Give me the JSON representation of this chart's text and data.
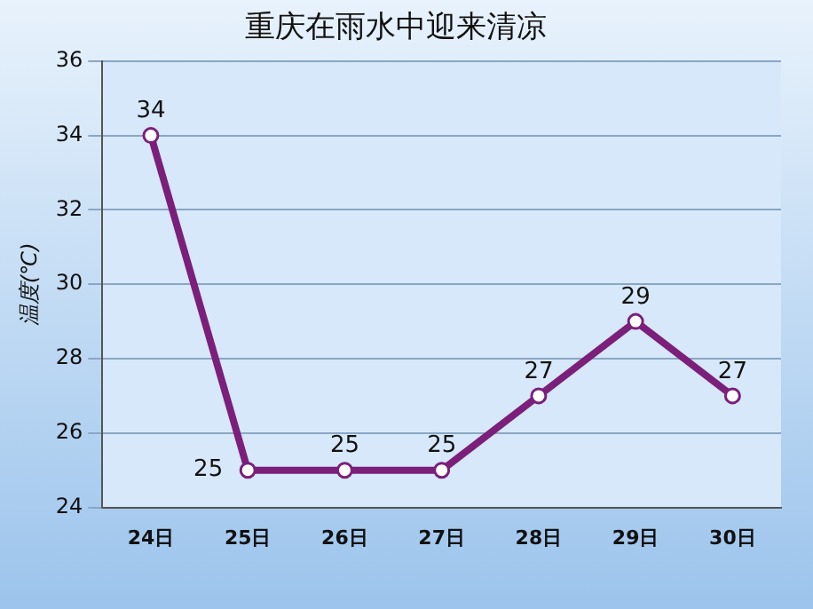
{
  "chart_data": {
    "type": "line",
    "title": "重庆在雨水中迎来清凉",
    "ylabel": "温度(℃)",
    "categories": [
      "24日",
      "25日",
      "26日",
      "27日",
      "28日",
      "29日",
      "30日"
    ],
    "series": [
      {
        "color": "#7b1f7a",
        "values": [
          34,
          25,
          25,
          25,
          27,
          29,
          27
        ]
      }
    ],
    "ylim": [
      24,
      36
    ],
    "yticks": [
      24,
      26,
      28,
      30,
      32,
      34,
      36
    ],
    "grid": "y",
    "marker": "circle",
    "data_labels": true,
    "legend": false
  }
}
